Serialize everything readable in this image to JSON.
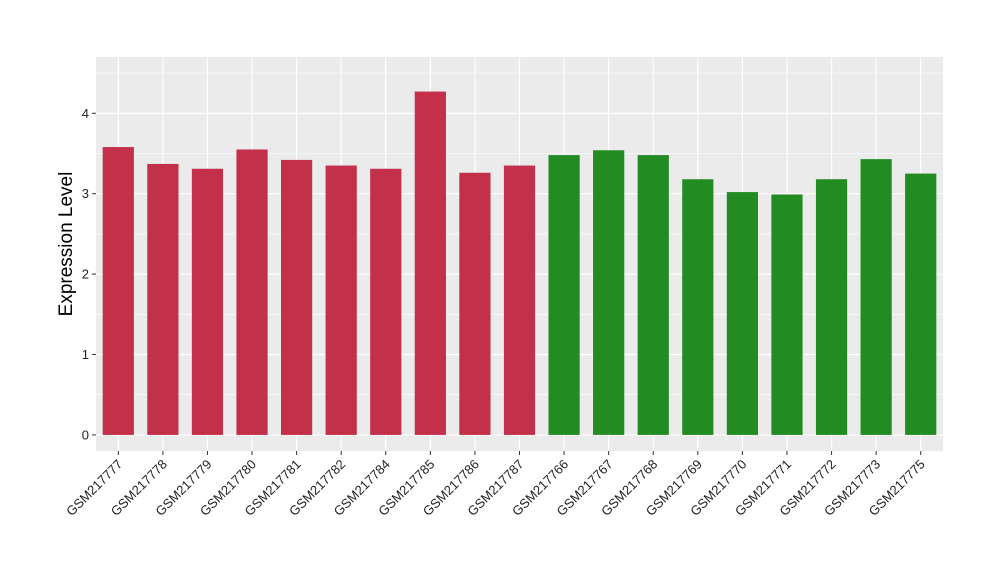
{
  "chart_data": {
    "type": "bar",
    "title": "",
    "xlabel": "",
    "ylabel": "Expression Level",
    "ylim": [
      -0.2,
      4.7
    ],
    "yticks": [
      0,
      1,
      2,
      3,
      4
    ],
    "grid": true,
    "categories": [
      "GSM217777",
      "GSM217778",
      "GSM217779",
      "GSM217780",
      "GSM217781",
      "GSM217782",
      "GSM217784",
      "GSM217785",
      "GSM217786",
      "GSM217787",
      "GSM217766",
      "GSM217767",
      "GSM217768",
      "GSM217769",
      "GSM217770",
      "GSM217771",
      "GSM217772",
      "GSM217773",
      "GSM217775"
    ],
    "values": [
      3.58,
      3.37,
      3.31,
      3.55,
      3.42,
      3.35,
      3.31,
      4.27,
      3.26,
      3.35,
      3.48,
      3.54,
      3.48,
      3.18,
      3.02,
      2.99,
      3.18,
      3.43,
      3.25
    ],
    "bar_colors": [
      "#c3304a",
      "#c3304a",
      "#c3304a",
      "#c3304a",
      "#c3304a",
      "#c3304a",
      "#c3304a",
      "#c3304a",
      "#c3304a",
      "#c3304a",
      "#228b22",
      "#228b22",
      "#228b22",
      "#228b22",
      "#228b22",
      "#228b22",
      "#228b22",
      "#228b22",
      "#228b22"
    ],
    "panel_background": "#ebebeb",
    "grid_color": "#ffffff"
  }
}
